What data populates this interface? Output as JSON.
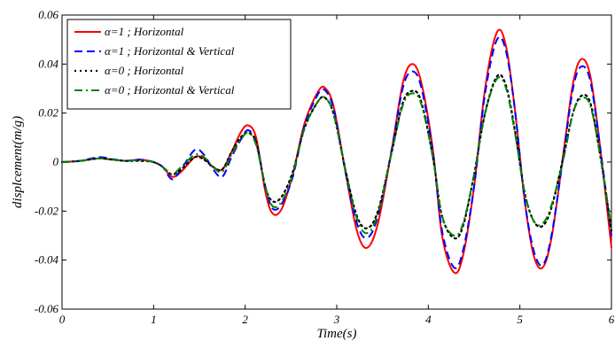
{
  "chart_data": {
    "type": "line",
    "title": "",
    "xlabel": "Time(s)",
    "ylabel": "displcement(m/g)",
    "xlim": [
      0,
      6
    ],
    "ylim": [
      -0.06,
      0.06
    ],
    "xticks": [
      0,
      1,
      2,
      3,
      4,
      5,
      6
    ],
    "xtick_labels": [
      "0",
      "1",
      "2",
      "3",
      "4",
      "5",
      "6"
    ],
    "yticks": [
      -0.06,
      -0.04,
      -0.02,
      0,
      0.02,
      0.04,
      0.06
    ],
    "ytick_labels": [
      "-0.06",
      "-0.04",
      "-0.02",
      "0",
      "0.02",
      "0.04",
      "0.06"
    ],
    "grid": false,
    "legend_position": "top-left",
    "series": [
      {
        "name": "α=1 ; Horizontal",
        "color": "#ff0000",
        "dash": "solid",
        "points": [
          [
            0,
            0
          ],
          [
            0.2,
            0.0005
          ],
          [
            0.4,
            0.0015
          ],
          [
            0.55,
            0.001
          ],
          [
            0.7,
            0.0005
          ],
          [
            0.85,
            0.001
          ],
          [
            1.0,
            0.0
          ],
          [
            1.1,
            -0.002
          ],
          [
            1.2,
            -0.006
          ],
          [
            1.3,
            -0.004
          ],
          [
            1.45,
            0.002
          ],
          [
            1.55,
            0.0015
          ],
          [
            1.65,
            -0.002
          ],
          [
            1.75,
            -0.003
          ],
          [
            1.85,
            0.004
          ],
          [
            1.95,
            0.012
          ],
          [
            2.03,
            0.015
          ],
          [
            2.12,
            0.01
          ],
          [
            2.22,
            -0.012
          ],
          [
            2.3,
            -0.021
          ],
          [
            2.4,
            -0.019
          ],
          [
            2.52,
            -0.005
          ],
          [
            2.65,
            0.016
          ],
          [
            2.8,
            0.029
          ],
          [
            2.88,
            0.03
          ],
          [
            2.97,
            0.022
          ],
          [
            3.1,
            -0.005
          ],
          [
            3.22,
            -0.028
          ],
          [
            3.33,
            -0.035
          ],
          [
            3.45,
            -0.025
          ],
          [
            3.6,
            0.005
          ],
          [
            3.72,
            0.032
          ],
          [
            3.82,
            0.04
          ],
          [
            3.92,
            0.033
          ],
          [
            4.05,
            0.005
          ],
          [
            4.15,
            -0.03
          ],
          [
            4.28,
            -0.045
          ],
          [
            4.38,
            -0.038
          ],
          [
            4.5,
            -0.01
          ],
          [
            4.62,
            0.03
          ],
          [
            4.75,
            0.053
          ],
          [
            4.85,
            0.047
          ],
          [
            4.95,
            0.02
          ],
          [
            5.05,
            -0.015
          ],
          [
            5.15,
            -0.038
          ],
          [
            5.25,
            -0.043
          ],
          [
            5.35,
            -0.03
          ],
          [
            5.48,
            0.005
          ],
          [
            5.58,
            0.032
          ],
          [
            5.67,
            0.042
          ],
          [
            5.77,
            0.035
          ],
          [
            5.88,
            0.005
          ],
          [
            6.0,
            -0.035
          ]
        ]
      },
      {
        "name": "α=1 ; Horizontal & Vertical",
        "color": "#0000ff",
        "dash": "dashed",
        "points": [
          [
            0,
            0
          ],
          [
            0.2,
            0.0005
          ],
          [
            0.4,
            0.002
          ],
          [
            0.55,
            0.0012
          ],
          [
            0.7,
            0.0005
          ],
          [
            0.85,
            0.001
          ],
          [
            1.0,
            0.0
          ],
          [
            1.1,
            -0.002
          ],
          [
            1.2,
            -0.007
          ],
          [
            1.3,
            -0.003
          ],
          [
            1.45,
            0.005
          ],
          [
            1.55,
            0.003
          ],
          [
            1.65,
            -0.003
          ],
          [
            1.75,
            -0.006
          ],
          [
            1.85,
            0.002
          ],
          [
            1.95,
            0.009
          ],
          [
            2.03,
            0.013
          ],
          [
            2.12,
            0.008
          ],
          [
            2.22,
            -0.01
          ],
          [
            2.3,
            -0.019
          ],
          [
            2.4,
            -0.017
          ],
          [
            2.52,
            -0.006
          ],
          [
            2.65,
            0.015
          ],
          [
            2.8,
            0.028
          ],
          [
            2.88,
            0.029
          ],
          [
            2.97,
            0.021
          ],
          [
            3.1,
            -0.005
          ],
          [
            3.22,
            -0.025
          ],
          [
            3.33,
            -0.031
          ],
          [
            3.45,
            -0.022
          ],
          [
            3.6,
            0.005
          ],
          [
            3.72,
            0.03
          ],
          [
            3.82,
            0.037
          ],
          [
            3.92,
            0.031
          ],
          [
            4.05,
            0.004
          ],
          [
            4.15,
            -0.028
          ],
          [
            4.28,
            -0.043
          ],
          [
            4.38,
            -0.036
          ],
          [
            4.5,
            -0.01
          ],
          [
            4.62,
            0.028
          ],
          [
            4.75,
            0.05
          ],
          [
            4.85,
            0.045
          ],
          [
            4.95,
            0.02
          ],
          [
            5.05,
            -0.015
          ],
          [
            5.15,
            -0.036
          ],
          [
            5.25,
            -0.042
          ],
          [
            5.35,
            -0.029
          ],
          [
            5.48,
            0.004
          ],
          [
            5.58,
            0.03
          ],
          [
            5.67,
            0.039
          ],
          [
            5.77,
            0.033
          ],
          [
            5.88,
            0.005
          ],
          [
            6.0,
            -0.03
          ]
        ]
      },
      {
        "name": "α=0 ; Horizontal",
        "color": "#000000",
        "dash": "dotted",
        "points": [
          [
            0,
            0
          ],
          [
            0.2,
            0.0005
          ],
          [
            0.4,
            0.0015
          ],
          [
            0.55,
            0.001
          ],
          [
            0.7,
            0.0005
          ],
          [
            0.85,
            0.0005
          ],
          [
            1.0,
            0.0
          ],
          [
            1.1,
            -0.002
          ],
          [
            1.2,
            -0.005
          ],
          [
            1.3,
            -0.003
          ],
          [
            1.45,
            0.002
          ],
          [
            1.55,
            0.001
          ],
          [
            1.65,
            -0.002
          ],
          [
            1.75,
            -0.003
          ],
          [
            1.85,
            0.004
          ],
          [
            1.95,
            0.01
          ],
          [
            2.03,
            0.012
          ],
          [
            2.12,
            0.008
          ],
          [
            2.22,
            -0.01
          ],
          [
            2.3,
            -0.016
          ],
          [
            2.4,
            -0.014
          ],
          [
            2.52,
            -0.004
          ],
          [
            2.65,
            0.014
          ],
          [
            2.8,
            0.025
          ],
          [
            2.88,
            0.026
          ],
          [
            2.97,
            0.019
          ],
          [
            3.1,
            -0.004
          ],
          [
            3.22,
            -0.022
          ],
          [
            3.33,
            -0.027
          ],
          [
            3.45,
            -0.02
          ],
          [
            3.6,
            0.004
          ],
          [
            3.72,
            0.024
          ],
          [
            3.82,
            0.029
          ],
          [
            3.92,
            0.025
          ],
          [
            4.05,
            0.002
          ],
          [
            4.15,
            -0.022
          ],
          [
            4.28,
            -0.031
          ],
          [
            4.38,
            -0.026
          ],
          [
            4.5,
            -0.005
          ],
          [
            4.62,
            0.02
          ],
          [
            4.75,
            0.035
          ],
          [
            4.85,
            0.031
          ],
          [
            4.95,
            0.012
          ],
          [
            5.05,
            -0.012
          ],
          [
            5.15,
            -0.024
          ],
          [
            5.25,
            -0.026
          ],
          [
            5.35,
            -0.018
          ],
          [
            5.48,
            0.003
          ],
          [
            5.58,
            0.02
          ],
          [
            5.67,
            0.027
          ],
          [
            5.77,
            0.024
          ],
          [
            5.88,
            0.002
          ],
          [
            6.0,
            -0.028
          ]
        ]
      },
      {
        "name": "α=0 ; Horizontal & Vertical",
        "color": "#008000",
        "dash": "dashdot",
        "points": [
          [
            0,
            0
          ],
          [
            0.2,
            0.0005
          ],
          [
            0.4,
            0.0015
          ],
          [
            0.55,
            0.001
          ],
          [
            0.7,
            0.0005
          ],
          [
            0.85,
            0.0008
          ],
          [
            1.0,
            0.0
          ],
          [
            1.1,
            -0.002
          ],
          [
            1.2,
            -0.005
          ],
          [
            1.3,
            -0.002
          ],
          [
            1.45,
            0.003
          ],
          [
            1.55,
            0.002
          ],
          [
            1.65,
            -0.002
          ],
          [
            1.75,
            -0.004
          ],
          [
            1.85,
            0.003
          ],
          [
            1.95,
            0.009
          ],
          [
            2.03,
            0.012
          ],
          [
            2.12,
            0.007
          ],
          [
            2.22,
            -0.01
          ],
          [
            2.3,
            -0.018
          ],
          [
            2.4,
            -0.016
          ],
          [
            2.52,
            -0.005
          ],
          [
            2.65,
            0.014
          ],
          [
            2.8,
            0.025
          ],
          [
            2.88,
            0.026
          ],
          [
            2.97,
            0.019
          ],
          [
            3.1,
            -0.004
          ],
          [
            3.22,
            -0.023
          ],
          [
            3.33,
            -0.029
          ],
          [
            3.45,
            -0.021
          ],
          [
            3.6,
            0.004
          ],
          [
            3.72,
            0.023
          ],
          [
            3.82,
            0.028
          ],
          [
            3.92,
            0.024
          ],
          [
            4.05,
            0.002
          ],
          [
            4.15,
            -0.022
          ],
          [
            4.28,
            -0.03
          ],
          [
            4.38,
            -0.025
          ],
          [
            4.5,
            -0.005
          ],
          [
            4.62,
            0.02
          ],
          [
            4.75,
            0.034
          ],
          [
            4.85,
            0.03
          ],
          [
            4.95,
            0.011
          ],
          [
            5.05,
            -0.012
          ],
          [
            5.15,
            -0.024
          ],
          [
            5.25,
            -0.025
          ],
          [
            5.35,
            -0.017
          ],
          [
            5.48,
            0.002
          ],
          [
            5.58,
            0.02
          ],
          [
            5.67,
            0.026
          ],
          [
            5.77,
            0.023
          ],
          [
            5.88,
            0.002
          ],
          [
            6.0,
            -0.027
          ]
        ]
      }
    ]
  }
}
